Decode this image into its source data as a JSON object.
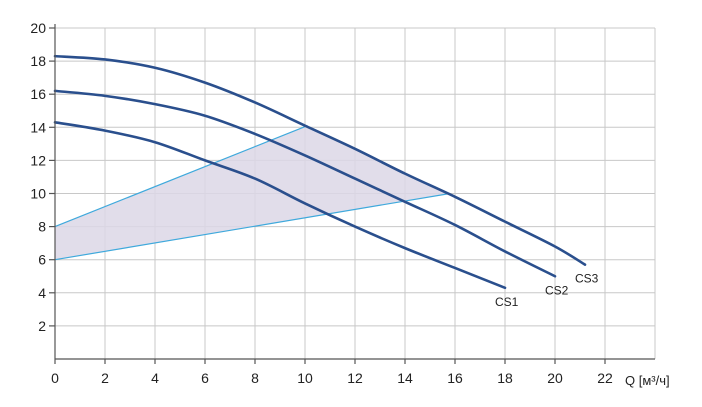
{
  "chart_data": {
    "type": "line",
    "xlabel": "Q [м³/ч]",
    "ylabel": "",
    "xlim": [
      0,
      24
    ],
    "ylim": [
      0,
      20
    ],
    "x_ticks": [
      0,
      2,
      4,
      6,
      8,
      10,
      12,
      14,
      16,
      18,
      20,
      22
    ],
    "y_ticks": [
      2,
      4,
      6,
      8,
      10,
      12,
      14,
      16,
      18,
      20
    ],
    "grid": true,
    "series": [
      {
        "name": "CS1",
        "color": "#2a4f8d",
        "points": [
          [
            0,
            14.3
          ],
          [
            2,
            13.8
          ],
          [
            4,
            13.1
          ],
          [
            6,
            12.0
          ],
          [
            8,
            10.9
          ],
          [
            10,
            9.4
          ],
          [
            12,
            8.0
          ],
          [
            14,
            6.7
          ],
          [
            16,
            5.5
          ],
          [
            18,
            4.3
          ]
        ]
      },
      {
        "name": "CS2",
        "color": "#2a4f8d",
        "points": [
          [
            0,
            16.2
          ],
          [
            2,
            15.9
          ],
          [
            4,
            15.4
          ],
          [
            6,
            14.7
          ],
          [
            8,
            13.6
          ],
          [
            10,
            12.3
          ],
          [
            12,
            10.9
          ],
          [
            14,
            9.5
          ],
          [
            16,
            8.1
          ],
          [
            18,
            6.5
          ],
          [
            20,
            5.0
          ]
        ]
      },
      {
        "name": "CS3",
        "color": "#2a4f8d",
        "points": [
          [
            0,
            18.3
          ],
          [
            2,
            18.1
          ],
          [
            4,
            17.6
          ],
          [
            6,
            16.7
          ],
          [
            8,
            15.5
          ],
          [
            10,
            14.1
          ],
          [
            12,
            12.7
          ],
          [
            14,
            11.2
          ],
          [
            16,
            9.8
          ],
          [
            18,
            8.3
          ],
          [
            20,
            6.8
          ],
          [
            21.2,
            5.7
          ]
        ]
      }
    ],
    "shaded_region": {
      "color": "#dcd7e6",
      "line_color": "#3fa9dc",
      "points": [
        [
          0,
          8.0
        ],
        [
          10.1,
          14.1
        ],
        [
          15.8,
          10.0
        ],
        [
          0,
          6.0
        ]
      ]
    }
  }
}
